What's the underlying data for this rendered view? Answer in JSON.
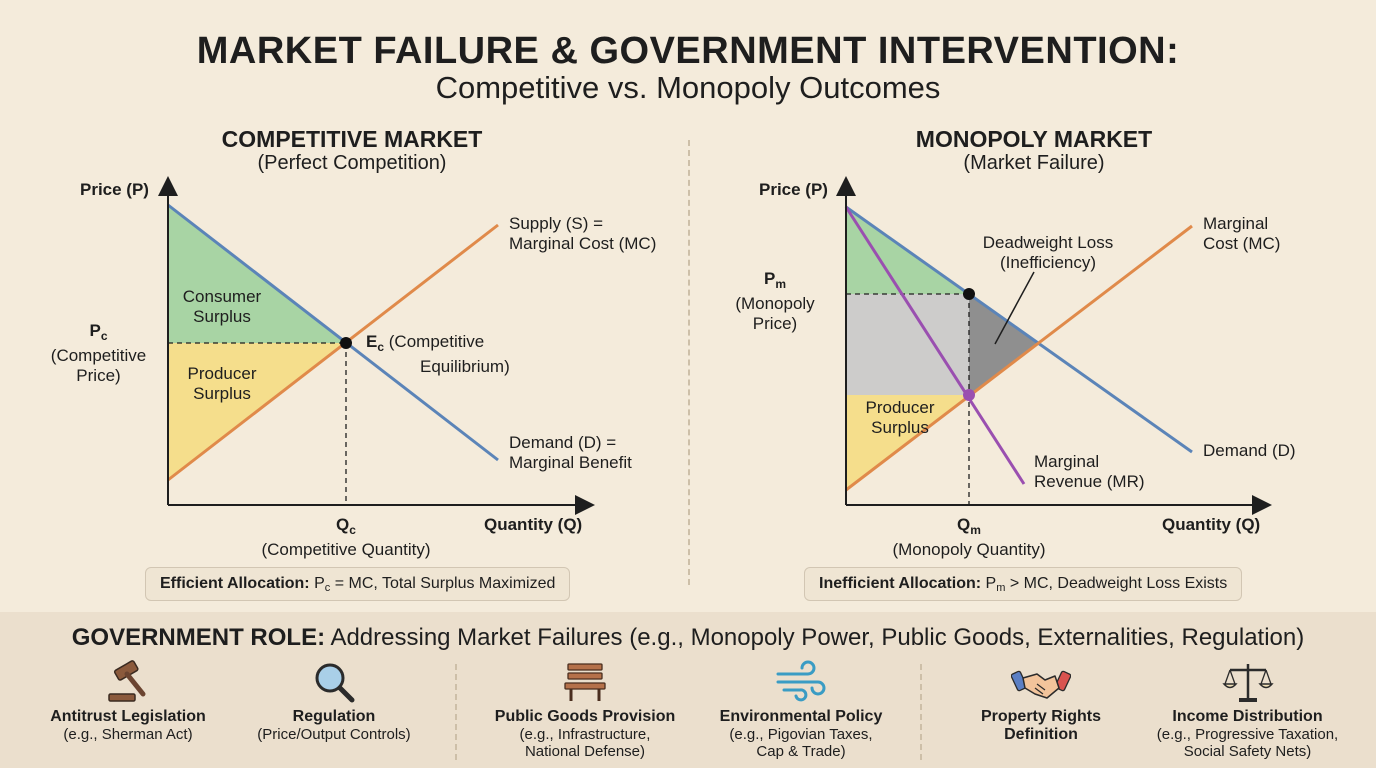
{
  "header": {
    "title": "MARKET FAILURE & GOVERNMENT INTERVENTION:",
    "subtitle": "Competitive vs. Monopoly Outcomes"
  },
  "competitive": {
    "title": "COMPETITIVE MARKET",
    "subtitle": "(Perfect Competition)",
    "y_axis": "Price (P)",
    "x_axis": "Quantity (Q)",
    "supply_label_1": "Supply (S) =",
    "supply_label_2": "Marginal Cost (MC)",
    "demand_label_1": "Demand (D) =",
    "demand_label_2": "Marginal Benefit",
    "consumer_surplus_1": "Consumer",
    "consumer_surplus_2": "Surplus",
    "producer_surplus_1": "Producer",
    "producer_surplus_2": "Surplus",
    "price_symbol": "P",
    "price_sub": "c",
    "price_desc_1": "(Competitive",
    "price_desc_2": "Price)",
    "eq_symbol": "E",
    "eq_sub": "c",
    "eq_desc_1": "(Competitive",
    "eq_desc_2": "Equilibrium)",
    "qty_symbol": "Q",
    "qty_sub": "c",
    "qty_desc": "(Competitive Quantity)",
    "note_bold": "Efficient Allocation:",
    "note_p": "P",
    "note_sub": "c",
    "note_rest": "= MC, Total Surplus Maximized"
  },
  "monopoly": {
    "title": "MONOPOLY MARKET",
    "subtitle": "(Market Failure)",
    "y_axis": "Price (P)",
    "x_axis": "Quantity (Q)",
    "mc_label_1": "Marginal",
    "mc_label_2": "Cost (MC)",
    "demand_label": "Demand (D)",
    "mr_label_1": "Marginal",
    "mr_label_2": "Revenue (MR)",
    "dwl_label_1": "Deadweight Loss",
    "dwl_label_2": "(Inefficiency)",
    "producer_surplus_1": "Producer",
    "producer_surplus_2": "Surplus",
    "price_symbol": "P",
    "price_sub": "m",
    "price_desc_1": "(Monopoly",
    "price_desc_2": "Price)",
    "qty_symbol": "Q",
    "qty_sub": "m",
    "qty_desc": "(Monopoly Quantity)",
    "note_bold": "Inefficient Allocation:",
    "note_p": "P",
    "note_sub": "m",
    "note_rest": "> MC, Deadweight Loss Exists"
  },
  "government": {
    "title_bold": "GOVERNMENT ROLE:",
    "title_rest": "Addressing Market Failures (e.g., Monopoly Power, Public Goods, Externalities, Regulation)",
    "items": [
      {
        "label": "Antitrust Legislation",
        "desc_1": "(e.g., Sherman Act)",
        "desc_2": "",
        "icon": "gavel-icon"
      },
      {
        "label": "Regulation",
        "desc_1": "(Price/Output Controls)",
        "desc_2": "",
        "icon": "magnifier-icon"
      },
      {
        "label": "Public Goods Provision",
        "desc_1": "(e.g., Infrastructure,",
        "desc_2": "National Defense)",
        "icon": "bench-icon"
      },
      {
        "label": "Environmental Policy",
        "desc_1": "(e.g., Pigovian Taxes,",
        "desc_2": "Cap & Trade)",
        "icon": "wind-icon"
      },
      {
        "label": "Property Rights",
        "desc_1": "Definition",
        "desc_2": "",
        "icon": "handshake-icon"
      },
      {
        "label": "Income Distribution",
        "desc_1": "(e.g., Progressive Taxation,",
        "desc_2": "Social Safety Nets)",
        "icon": "scales-icon"
      }
    ]
  },
  "colors": {
    "demand": "#5b84b8",
    "supply": "#e08a4a",
    "mr": "#9a4fb0",
    "consumer_surplus": "#a8d4a4",
    "producer_surplus": "#f5de8c",
    "dwl": "#8f8f8f",
    "transfer": "#c9c9c9"
  }
}
